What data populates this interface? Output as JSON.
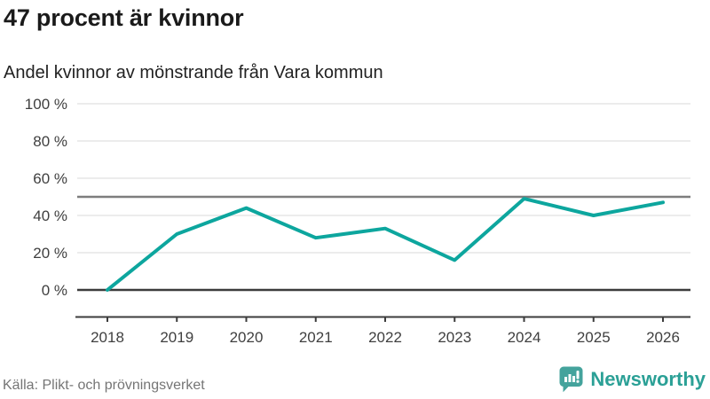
{
  "chart_data": {
    "type": "line",
    "title": "47 procent är kvinnor",
    "subtitle": "Andel kvinnor av mönstrande från Vara kommun",
    "source": "Källa: Plikt- och prövningsverket",
    "categories": [
      "2018",
      "2019",
      "2020",
      "2021",
      "2022",
      "2023",
      "2024",
      "2025",
      "2026"
    ],
    "series": [
      {
        "name": "Andel kvinnor av mönstrande",
        "values": [
          0,
          30,
          44,
          28,
          33,
          16,
          49,
          40,
          47
        ]
      }
    ],
    "unit": "%",
    "ylim": [
      0,
      100
    ],
    "yticks": [
      0,
      20,
      40,
      60,
      80,
      100
    ],
    "ytick_suffix": " %",
    "reference_line": 50,
    "grid": true,
    "legend": "none",
    "line_color": "#0da69e"
  },
  "footer": {
    "source": "Källa: Plikt- och prövningsverket",
    "brand_name": "Newsworthy",
    "brand_color": "#2ba096",
    "brand_icon": "newsworthy-bar-chart-bubble-icon"
  },
  "colors": {
    "accent": "#0da69e",
    "axis": "#3c3c3c",
    "grid": "#ececec",
    "reference_line": "#7d7d7d",
    "title_text": "#1a1a1a",
    "muted_text": "#757575"
  }
}
